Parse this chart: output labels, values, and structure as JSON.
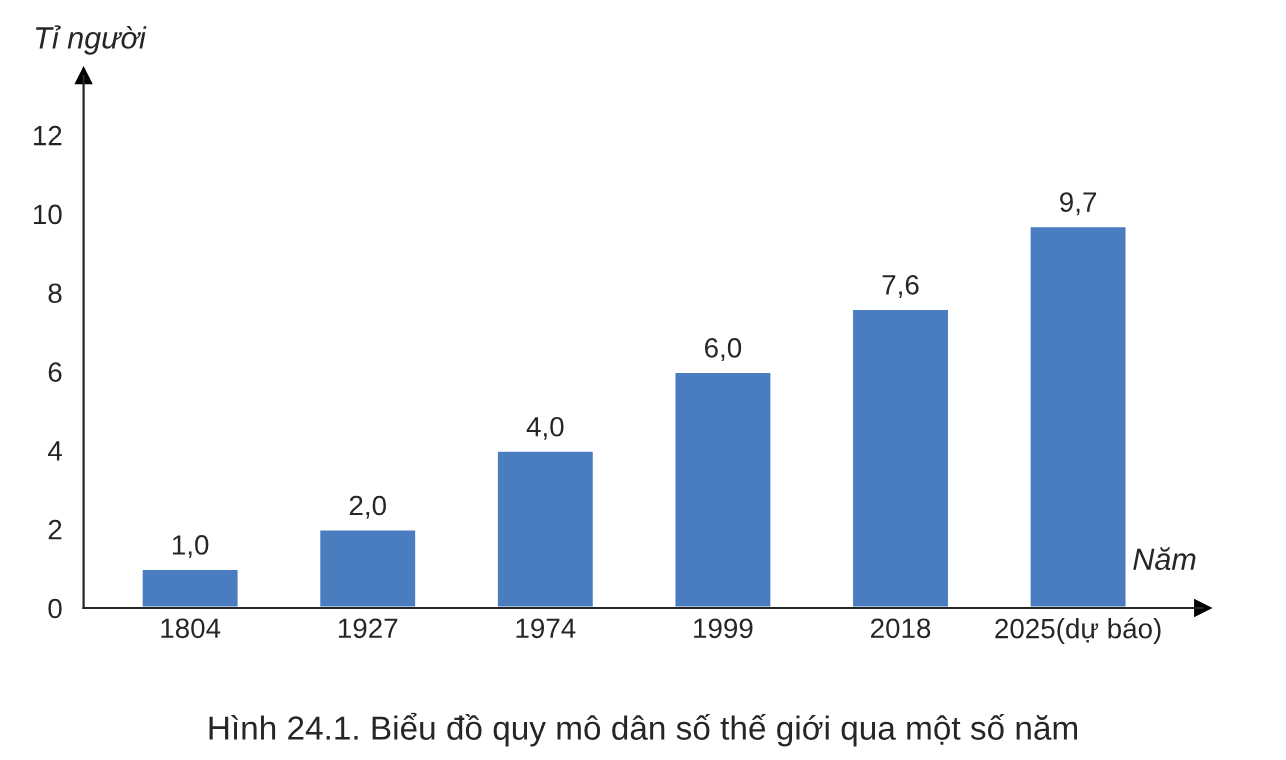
{
  "chart_data": {
    "type": "bar",
    "title": "Hình 24.1. Biểu đồ quy mô dân số thế giới qua một số năm",
    "xlabel": "Năm",
    "ylabel": "Tỉ người",
    "categories": [
      "1804",
      "1927",
      "1974",
      "1999",
      "2018",
      "2025(dự báo)"
    ],
    "values": [
      1.0,
      2.0,
      4.0,
      6.0,
      7.6,
      9.7
    ],
    "value_labels": [
      "1,0",
      "2,0",
      "4,0",
      "6,0",
      "7,6",
      "9,7"
    ],
    "color": "#4a7cc0",
    "ylim": [
      0,
      13.5
    ],
    "yticks": [
      0,
      2,
      4,
      6,
      8,
      10,
      12
    ],
    "grid": false,
    "legend": false
  }
}
